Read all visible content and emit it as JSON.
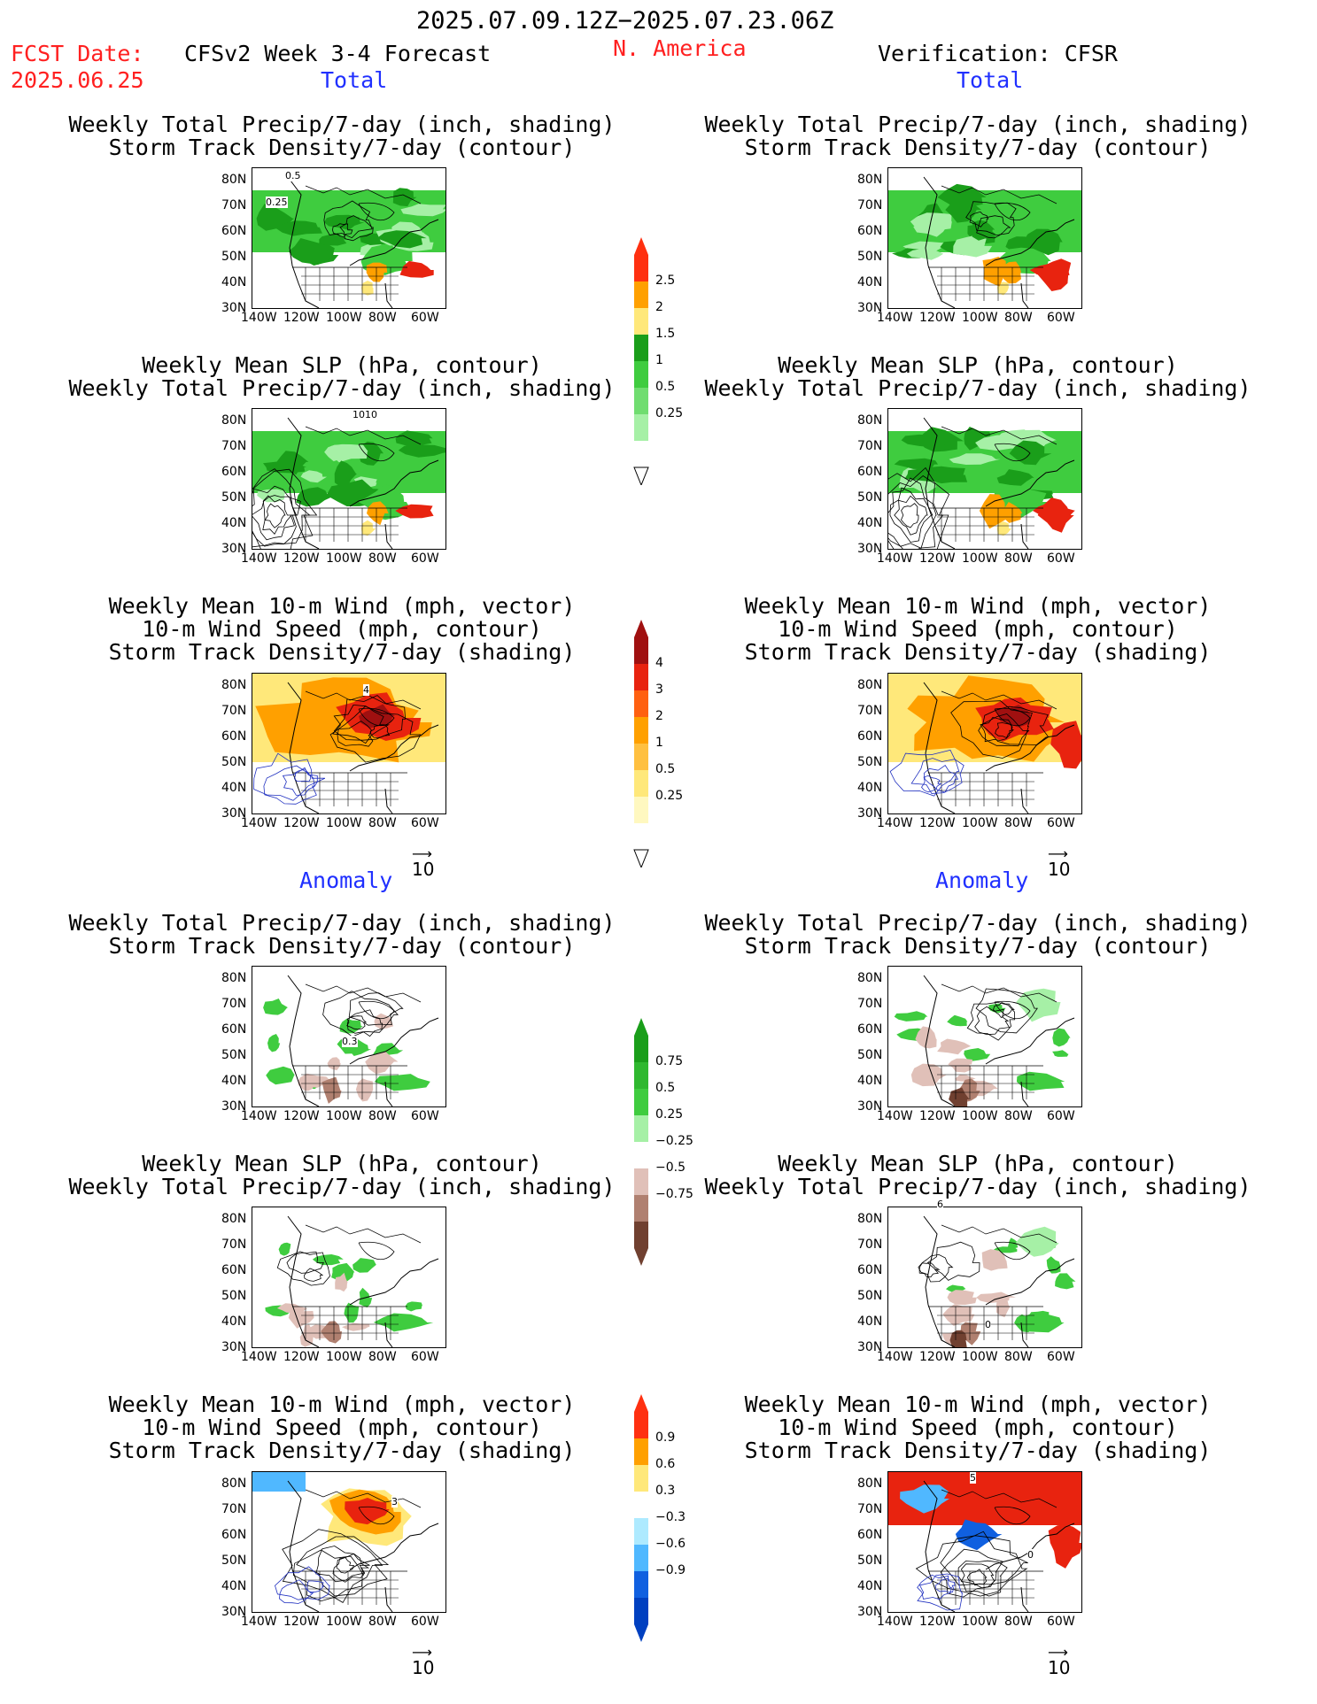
{
  "header": {
    "period": "2025.07.09.12Z−2025.07.23.06Z",
    "fcst_label": "FCST Date:",
    "fcst_date": "2025.06.25",
    "model": "CFSv2 Week 3-4 Forecast",
    "region": "N. America",
    "verification": "Verification: CFSR"
  },
  "sections": {
    "total": "Total",
    "anomaly": "Anomaly"
  },
  "titles": {
    "precip_track": [
      "Weekly Total Precip/7-day (inch, shading)",
      "Storm Track Density/7-day (contour)"
    ],
    "slp_precip": [
      "Weekly Mean SLP (hPa, contour)",
      "Weekly Total Precip/7-day (inch, shading)"
    ],
    "wind_track": [
      "Weekly Mean 10-m Wind (mph, vector)",
      "10-m Wind Speed (mph, contour)",
      "Storm Track Density/7-day (shading)"
    ]
  },
  "axes": {
    "lat": [
      "80N",
      "70N",
      "60N",
      "50N",
      "40N",
      "30N"
    ],
    "lon": [
      "140W",
      "120W",
      "100W",
      "80W",
      "60W"
    ]
  },
  "vector_ref": "10",
  "contour_labels": {
    "p1_a": "0.5",
    "p1_b": "0.25",
    "p2": "1010",
    "p3": "4",
    "p7": "0.3",
    "p11": "6",
    "p11b": "0",
    "p6": "5",
    "p12": "3",
    "p12b": "0"
  },
  "colorbars": {
    "precip_total": [
      "2.5",
      "2",
      "1.5",
      "1",
      "0.5",
      "0.25"
    ],
    "track_total": [
      "4",
      "3",
      "2",
      "1",
      "0.5",
      "0.25"
    ],
    "precip_anom": [
      "0.75",
      "0.5",
      "0.25",
      "−0.25",
      "−0.5",
      "−0.75"
    ],
    "track_anom": [
      "0.9",
      "0.6",
      "0.3",
      "−0.3",
      "−0.6",
      "−0.9"
    ]
  },
  "colors": {
    "green_dark": "#1a9e1a",
    "green_mid": "#3fcc3f",
    "green_light": "#a6f0a6",
    "yellow": "#ffe87a",
    "orange": "#ffa000",
    "red": "#e8230f",
    "dark_red": "#a01010",
    "brown_light": "#e0c0b8",
    "brown_mid": "#b08070",
    "brown_dark": "#704030",
    "blue_light": "#aeeaff",
    "blue_mid": "#50b8ff",
    "blue_dark": "#1060e0"
  }
}
